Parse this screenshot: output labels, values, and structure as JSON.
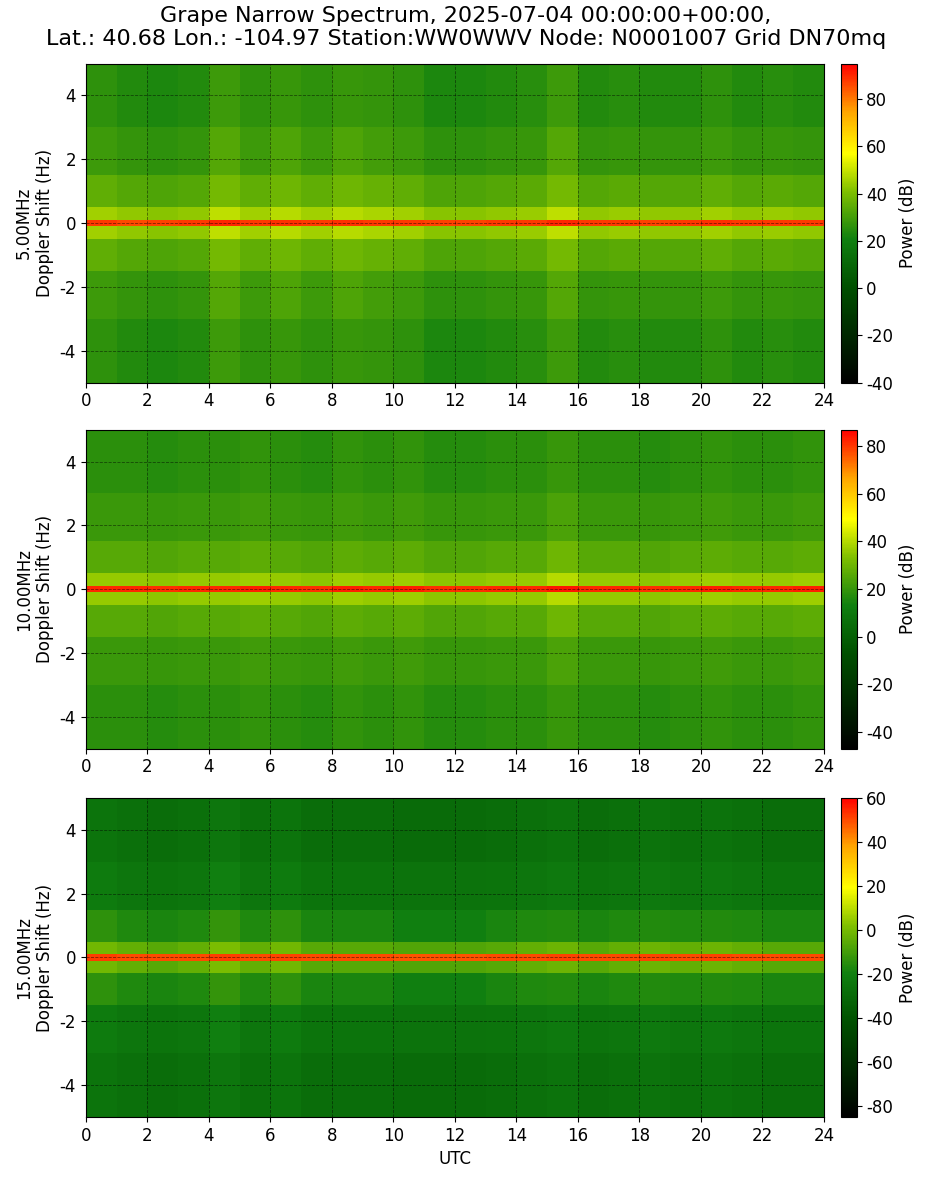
{
  "title": "Grape Narrow Spectrum, 2025-07-04 00:00:00+00:00,\nLat.: 40.68 Lon.: -104.97 Station:WW0WWV Node: N0001007 Grid DN70mq",
  "chart_data": [
    {
      "type": "heatmap",
      "ylabel": "5.00MHz\nDoppler Shift (Hz)",
      "xlim": [
        0,
        24
      ],
      "ylim": [
        -5,
        5
      ],
      "xticks": [
        0,
        2,
        4,
        6,
        8,
        10,
        12,
        14,
        16,
        18,
        20,
        22,
        24
      ],
      "yticks": [
        -4,
        -2,
        0,
        2,
        4
      ],
      "grid": true,
      "x_edges": [
        0,
        1,
        2,
        3,
        4,
        5,
        6,
        7,
        8,
        9,
        10,
        11,
        12,
        13,
        14,
        15,
        16,
        17,
        18,
        19,
        20,
        21,
        22,
        23,
        24
      ],
      "y_edges": [
        -5,
        -3,
        -1.5,
        -0.5,
        -0.1,
        0.1,
        0.5,
        1.5,
        3,
        5
      ],
      "cells": [
        [
          26,
          24,
          23,
          24,
          29,
          26,
          28,
          26,
          28,
          27,
          26,
          23,
          23,
          24,
          25,
          29,
          24,
          25,
          24,
          24,
          26,
          24,
          25,
          24
        ],
        [
          29,
          27,
          26,
          27,
          33,
          29,
          32,
          29,
          32,
          30,
          29,
          26,
          26,
          27,
          28,
          33,
          27,
          28,
          27,
          27,
          29,
          27,
          28,
          27
        ],
        [
          35,
          33,
          32,
          33,
          39,
          35,
          38,
          35,
          38,
          36,
          35,
          32,
          32,
          33,
          34,
          39,
          33,
          34,
          33,
          33,
          35,
          33,
          34,
          33
        ],
        [
          45,
          43,
          42,
          43,
          49,
          45,
          48,
          45,
          48,
          46,
          45,
          42,
          42,
          43,
          44,
          49,
          43,
          44,
          43,
          43,
          45,
          43,
          44,
          43
        ],
        [
          88,
          86,
          87,
          88,
          90,
          88,
          89,
          88,
          89,
          88,
          88,
          87,
          87,
          88,
          88,
          90,
          88,
          88,
          87,
          88,
          89,
          88,
          88,
          88
        ],
        [
          45,
          43,
          42,
          43,
          49,
          45,
          48,
          45,
          48,
          46,
          45,
          42,
          42,
          43,
          44,
          49,
          43,
          44,
          43,
          43,
          45,
          43,
          44,
          43
        ],
        [
          35,
          33,
          32,
          33,
          39,
          35,
          38,
          35,
          38,
          36,
          35,
          32,
          32,
          33,
          34,
          39,
          33,
          34,
          33,
          33,
          35,
          33,
          34,
          33
        ],
        [
          29,
          27,
          26,
          27,
          33,
          29,
          32,
          29,
          32,
          30,
          29,
          26,
          26,
          27,
          28,
          33,
          27,
          28,
          27,
          27,
          29,
          27,
          28,
          27
        ],
        [
          26,
          24,
          23,
          24,
          29,
          26,
          28,
          26,
          28,
          27,
          26,
          23,
          23,
          24,
          25,
          29,
          24,
          25,
          24,
          24,
          26,
          24,
          25,
          24
        ]
      ],
      "colorbar": {
        "label": "Power (dB)",
        "range": [
          -40,
          95
        ],
        "ticks": [
          -40,
          -20,
          0,
          20,
          40,
          60,
          80
        ]
      }
    },
    {
      "type": "heatmap",
      "ylabel": "10.00MHz\nDoppler Shift (Hz)",
      "xlim": [
        0,
        24
      ],
      "ylim": [
        -5,
        5
      ],
      "xticks": [
        0,
        2,
        4,
        6,
        8,
        10,
        12,
        14,
        16,
        18,
        20,
        22,
        24
      ],
      "yticks": [
        -4,
        -2,
        0,
        2,
        4
      ],
      "grid": true,
      "x_edges": [
        0,
        1,
        2,
        3,
        4,
        5,
        6,
        7,
        8,
        9,
        10,
        11,
        12,
        13,
        14,
        15,
        16,
        17,
        18,
        19,
        20,
        21,
        22,
        23,
        24
      ],
      "y_edges": [
        -5,
        -3,
        -1.5,
        -0.5,
        -0.1,
        0.1,
        0.5,
        1.5,
        3,
        5
      ],
      "cells": [
        [
          18,
          18,
          17,
          18,
          18,
          19,
          18,
          17,
          19,
          18,
          19,
          17,
          17,
          18,
          18,
          20,
          18,
          18,
          17,
          18,
          19,
          18,
          18,
          19
        ],
        [
          21,
          21,
          20,
          21,
          21,
          22,
          21,
          20,
          22,
          21,
          22,
          20,
          20,
          21,
          21,
          24,
          21,
          21,
          20,
          21,
          22,
          21,
          21,
          22
        ],
        [
          26,
          26,
          25,
          26,
          26,
          27,
          26,
          25,
          27,
          26,
          27,
          25,
          25,
          26,
          26,
          30,
          26,
          26,
          25,
          26,
          27,
          26,
          26,
          27
        ],
        [
          36,
          36,
          35,
          36,
          36,
          37,
          36,
          35,
          37,
          36,
          37,
          35,
          35,
          36,
          36,
          40,
          36,
          36,
          35,
          36,
          37,
          36,
          36,
          37
        ],
        [
          82,
          82,
          81,
          82,
          82,
          83,
          82,
          81,
          83,
          82,
          83,
          81,
          81,
          82,
          82,
          84,
          82,
          82,
          81,
          82,
          83,
          82,
          82,
          83
        ],
        [
          36,
          36,
          35,
          36,
          36,
          37,
          36,
          35,
          37,
          36,
          37,
          35,
          35,
          36,
          36,
          40,
          36,
          36,
          35,
          36,
          37,
          36,
          36,
          37
        ],
        [
          26,
          26,
          25,
          26,
          26,
          27,
          26,
          25,
          27,
          26,
          27,
          25,
          25,
          26,
          26,
          30,
          26,
          26,
          25,
          26,
          27,
          26,
          26,
          27
        ],
        [
          21,
          21,
          20,
          21,
          21,
          22,
          21,
          20,
          22,
          21,
          22,
          20,
          20,
          21,
          21,
          24,
          21,
          21,
          20,
          21,
          22,
          21,
          21,
          22
        ],
        [
          18,
          18,
          17,
          18,
          18,
          19,
          18,
          17,
          19,
          18,
          19,
          17,
          17,
          18,
          18,
          20,
          18,
          18,
          17,
          18,
          19,
          18,
          18,
          19
        ]
      ],
      "colorbar": {
        "label": "Power (dB)",
        "range": [
          -47,
          87
        ],
        "ticks": [
          -40,
          -20,
          0,
          20,
          40,
          60,
          80
        ]
      }
    },
    {
      "type": "heatmap",
      "ylabel": "15.00MHz\nDoppler Shift (Hz)",
      "xlabel": "UTC",
      "xlim": [
        0,
        24
      ],
      "ylim": [
        -5,
        5
      ],
      "xticks": [
        0,
        2,
        4,
        6,
        8,
        10,
        12,
        14,
        16,
        18,
        20,
        22,
        24
      ],
      "yticks": [
        -4,
        -2,
        0,
        2,
        4
      ],
      "grid": true,
      "x_edges": [
        0,
        1,
        2,
        3,
        4,
        5,
        6,
        7,
        8,
        9,
        10,
        11,
        12,
        13,
        14,
        15,
        16,
        17,
        18,
        19,
        20,
        21,
        22,
        23,
        24
      ],
      "y_edges": [
        -5,
        -3,
        -1.5,
        -0.5,
        -0.1,
        0.1,
        0.5,
        1.5,
        3,
        5
      ],
      "cells": [
        [
          -25,
          -27,
          -28,
          -27,
          -24,
          -27,
          -25,
          -28,
          -28,
          -28,
          -29,
          -29,
          -29,
          -28,
          -27,
          -26,
          -28,
          -27,
          -26,
          -27,
          -26,
          -27,
          -28,
          -28
        ],
        [
          -22,
          -24,
          -25,
          -24,
          -20,
          -24,
          -22,
          -25,
          -25,
          -25,
          -26,
          -26,
          -26,
          -25,
          -24,
          -23,
          -25,
          -24,
          -23,
          -24,
          -23,
          -24,
          -25,
          -25
        ],
        [
          -14,
          -17,
          -18,
          -17,
          -13,
          -17,
          -14,
          -18,
          -18,
          -18,
          -20,
          -20,
          -20,
          -18,
          -17,
          -16,
          -18,
          -17,
          -16,
          -17,
          -16,
          -17,
          -18,
          -18
        ],
        [
          -1,
          -4,
          -6,
          -4,
          1,
          -4,
          -1,
          -6,
          -6,
          -6,
          -7,
          -7,
          -7,
          -6,
          -4,
          -2,
          -6,
          -4,
          -2,
          -4,
          -2,
          -4,
          -6,
          -6
        ],
        [
          52,
          50,
          50,
          50,
          52,
          50,
          51,
          50,
          50,
          50,
          49,
          49,
          49,
          50,
          50,
          51,
          50,
          50,
          51,
          50,
          51,
          50,
          50,
          50
        ],
        [
          -1,
          -4,
          -6,
          -4,
          1,
          -4,
          -1,
          -6,
          -6,
          -6,
          -7,
          -7,
          -7,
          -6,
          -4,
          -2,
          -6,
          -4,
          -2,
          -4,
          -2,
          -4,
          -6,
          -6
        ],
        [
          -14,
          -17,
          -18,
          -17,
          -13,
          -17,
          -14,
          -18,
          -18,
          -18,
          -20,
          -20,
          -20,
          -18,
          -17,
          -16,
          -18,
          -17,
          -16,
          -17,
          -16,
          -17,
          -18,
          -18
        ],
        [
          -22,
          -24,
          -25,
          -24,
          -20,
          -24,
          -22,
          -25,
          -25,
          -25,
          -26,
          -26,
          -26,
          -25,
          -24,
          -23,
          -25,
          -24,
          -23,
          -24,
          -23,
          -24,
          -25,
          -25
        ],
        [
          -25,
          -27,
          -28,
          -27,
          -24,
          -27,
          -25,
          -28,
          -28,
          -28,
          -29,
          -29,
          -29,
          -28,
          -27,
          -26,
          -28,
          -27,
          -26,
          -27,
          -26,
          -27,
          -28,
          -28
        ]
      ],
      "colorbar": {
        "label": "Power (dB)",
        "range": [
          -85,
          60
        ],
        "ticks": [
          -80,
          -60,
          -40,
          -20,
          0,
          20,
          40,
          60
        ]
      }
    }
  ]
}
